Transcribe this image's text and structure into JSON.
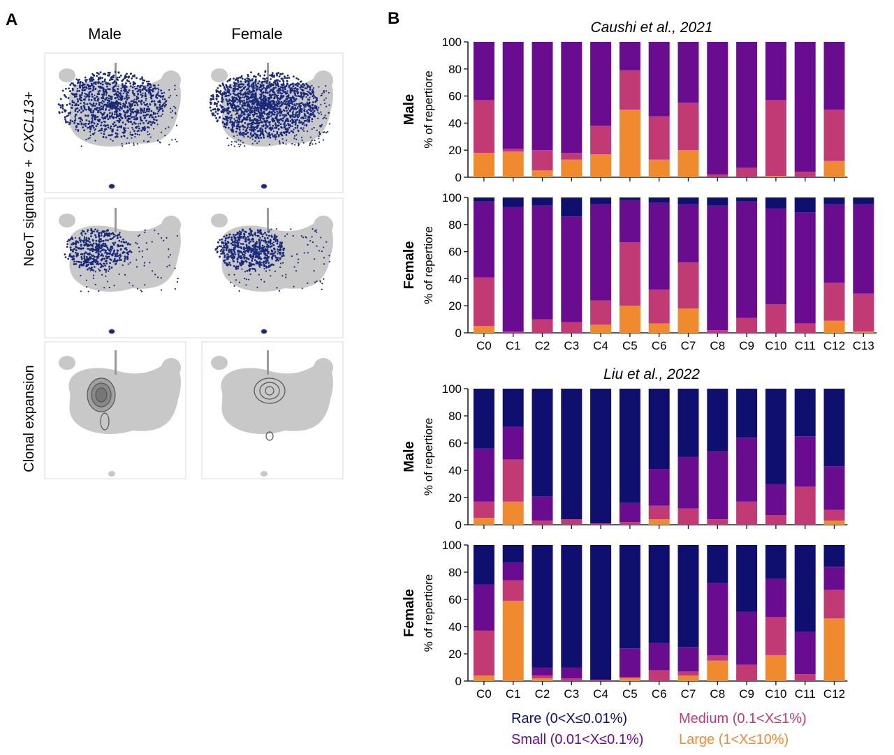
{
  "panel_labels": {
    "a": "A",
    "b": "B"
  },
  "panel_a": {
    "columns": [
      "Male",
      "Female"
    ],
    "rows": [
      "CXCL13+",
      "NeoT signature +",
      "Clonal expansion"
    ]
  },
  "colors": {
    "rare": "#0e0f6e",
    "small": "#6a0c8f",
    "medium": "#c23a73",
    "large": "#f08a2e",
    "umap_gray": "#c8c8c8",
    "umap_dots": "#1a2a7a"
  },
  "legend": {
    "rare": "Rare (0<X≤0.01%)",
    "small": "Small (0.01<X≤0.1%)",
    "medium": "Medium (0.1<X≤1%)",
    "large": "Large (1<X≤10%)"
  },
  "chart_data": [
    {
      "type": "bar",
      "stacked": true,
      "title": "Caushi et al., 2021",
      "group": "Male",
      "ylabel": "% of repertiore",
      "ylim": [
        0,
        100
      ],
      "yticks": [
        0,
        20,
        40,
        60,
        80,
        100
      ],
      "categories": [
        "C0",
        "C1",
        "C2",
        "C3",
        "C4",
        "C5",
        "C6",
        "C7",
        "C8",
        "C9",
        "C10",
        "C11",
        "C12"
      ],
      "series": [
        {
          "name": "Large (1<X≤10%)",
          "values": [
            18,
            19,
            5,
            13,
            17,
            50,
            13,
            20,
            0,
            0,
            1,
            0,
            12
          ]
        },
        {
          "name": "Medium (0.1<X≤1%)",
          "values": [
            39,
            2,
            15,
            5,
            21,
            29,
            32,
            35,
            2,
            7,
            56,
            4,
            38
          ]
        },
        {
          "name": "Small (0.01<X≤0.1%)",
          "values": [
            43,
            79,
            80,
            82,
            62,
            21,
            55,
            45,
            98,
            93,
            43,
            96,
            50
          ]
        },
        {
          "name": "Rare (0<X≤0.01%)",
          "values": [
            0,
            0,
            0,
            0,
            0,
            0,
            0,
            0,
            0,
            0,
            0,
            0,
            0
          ]
        }
      ]
    },
    {
      "type": "bar",
      "stacked": true,
      "title": "",
      "group": "Female",
      "ylabel": "% of repertiore",
      "ylim": [
        0,
        100
      ],
      "yticks": [
        0,
        20,
        40,
        60,
        80,
        100
      ],
      "categories": [
        "C0",
        "C1",
        "C2",
        "C3",
        "C4",
        "C5",
        "C6",
        "C7",
        "C8",
        "C9",
        "C10",
        "C11",
        "C12",
        "C13"
      ],
      "series": [
        {
          "name": "Large (1<X≤10%)",
          "values": [
            5,
            0,
            0,
            0,
            6,
            20,
            7,
            18,
            0,
            0,
            0,
            0,
            9,
            1
          ]
        },
        {
          "name": "Medium (0.1<X≤1%)",
          "values": [
            36,
            1,
            10,
            8,
            18,
            47,
            25,
            34,
            2,
            11,
            21,
            7,
            28,
            28
          ]
        },
        {
          "name": "Small (0.01<X≤0.1%)",
          "values": [
            56,
            92,
            84,
            78,
            71,
            31,
            64,
            43,
            92,
            86,
            71,
            82,
            58,
            66
          ]
        },
        {
          "name": "Rare (0<X≤0.01%)",
          "values": [
            3,
            7,
            6,
            14,
            5,
            2,
            4,
            5,
            6,
            3,
            8,
            11,
            5,
            5
          ]
        }
      ]
    },
    {
      "type": "bar",
      "stacked": true,
      "title": "Liu et al., 2022",
      "group": "Male",
      "ylabel": "% of repertiore",
      "ylim": [
        0,
        100
      ],
      "yticks": [
        0,
        20,
        40,
        60,
        80,
        100
      ],
      "categories": [
        "C0",
        "C1",
        "C2",
        "C3",
        "C4",
        "C5",
        "C6",
        "C7",
        "C8",
        "C9",
        "C10",
        "C11",
        "C12"
      ],
      "series": [
        {
          "name": "Large (1<X≤10%)",
          "values": [
            5,
            17,
            0,
            0,
            0,
            0,
            4,
            0,
            0,
            0,
            0,
            0,
            3
          ]
        },
        {
          "name": "Medium (0.1<X≤1%)",
          "values": [
            12,
            31,
            3,
            4,
            1,
            2,
            10,
            12,
            4,
            17,
            7,
            28,
            8
          ]
        },
        {
          "name": "Small (0.01<X≤0.1%)",
          "values": [
            39,
            24,
            18,
            0,
            0,
            14,
            27,
            38,
            50,
            47,
            23,
            37,
            32
          ]
        },
        {
          "name": "Rare (0<X≤0.01%)",
          "values": [
            44,
            28,
            79,
            96,
            99,
            84,
            59,
            50,
            46,
            36,
            70,
            35,
            57
          ]
        }
      ]
    },
    {
      "type": "bar",
      "stacked": true,
      "title": "",
      "group": "Female",
      "ylabel": "% of repertiore",
      "ylim": [
        0,
        100
      ],
      "yticks": [
        0,
        20,
        40,
        60,
        80,
        100
      ],
      "categories": [
        "C0",
        "C1",
        "C2",
        "C3",
        "C4",
        "C5",
        "C6",
        "C7",
        "C8",
        "C9",
        "C10",
        "C11",
        "C12"
      ],
      "series": [
        {
          "name": "Large (1<X≤10%)",
          "values": [
            4,
            59,
            2,
            0,
            0,
            2,
            0,
            4,
            15,
            0,
            19,
            0,
            46
          ]
        },
        {
          "name": "Medium (0.1<X≤1%)",
          "values": [
            33,
            15,
            2,
            2,
            1,
            1,
            8,
            3,
            4,
            12,
            28,
            5,
            21
          ]
        },
        {
          "name": "Small (0.01<X≤0.1%)",
          "values": [
            34,
            13,
            6,
            8,
            0,
            21,
            20,
            18,
            53,
            39,
            28,
            31,
            17
          ]
        },
        {
          "name": "Rare (0<X≤0.01%)",
          "values": [
            29,
            13,
            90,
            90,
            99,
            76,
            72,
            75,
            28,
            49,
            25,
            64,
            16
          ]
        }
      ]
    }
  ]
}
